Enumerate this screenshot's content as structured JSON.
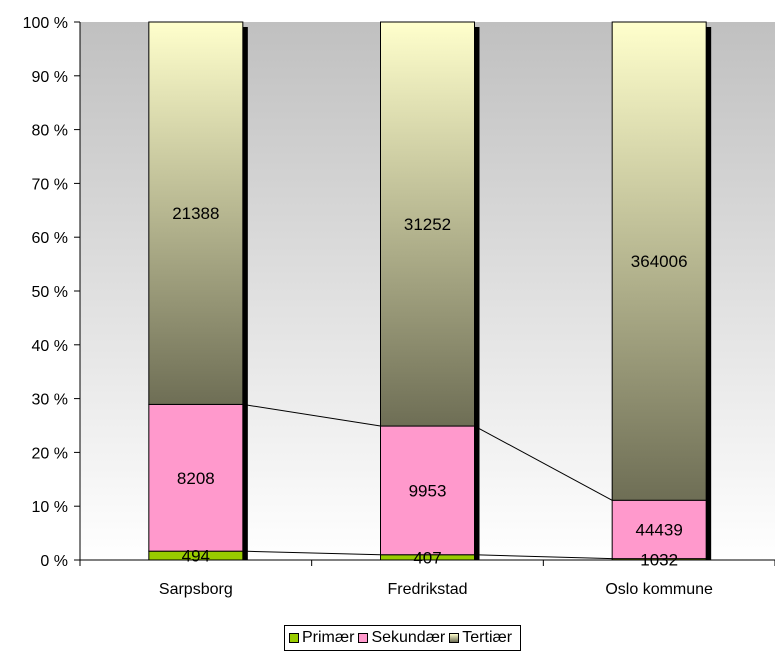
{
  "chart_data": {
    "type": "bar",
    "stacked": "percent",
    "categories": [
      "Sarpsborg",
      "Fredrikstad",
      "Oslo kommune"
    ],
    "series": [
      {
        "name": "Primær",
        "values": [
          494,
          407,
          1032
        ],
        "color": "#99cc00"
      },
      {
        "name": "Sekundær",
        "values": [
          8208,
          9953,
          44439
        ],
        "color": "#ff99cc"
      },
      {
        "name": "Tertiær",
        "values": [
          21388,
          31252,
          364006
        ],
        "color": "#ffffcc"
      }
    ],
    "y_ticks": [
      "0 %",
      "10 %",
      "20 %",
      "30 %",
      "40 %",
      "50 %",
      "60 %",
      "70 %",
      "80 %",
      "90 %",
      "100 %"
    ],
    "ylim": [
      0,
      100
    ],
    "legend_position": "bottom",
    "series_lines": true
  }
}
